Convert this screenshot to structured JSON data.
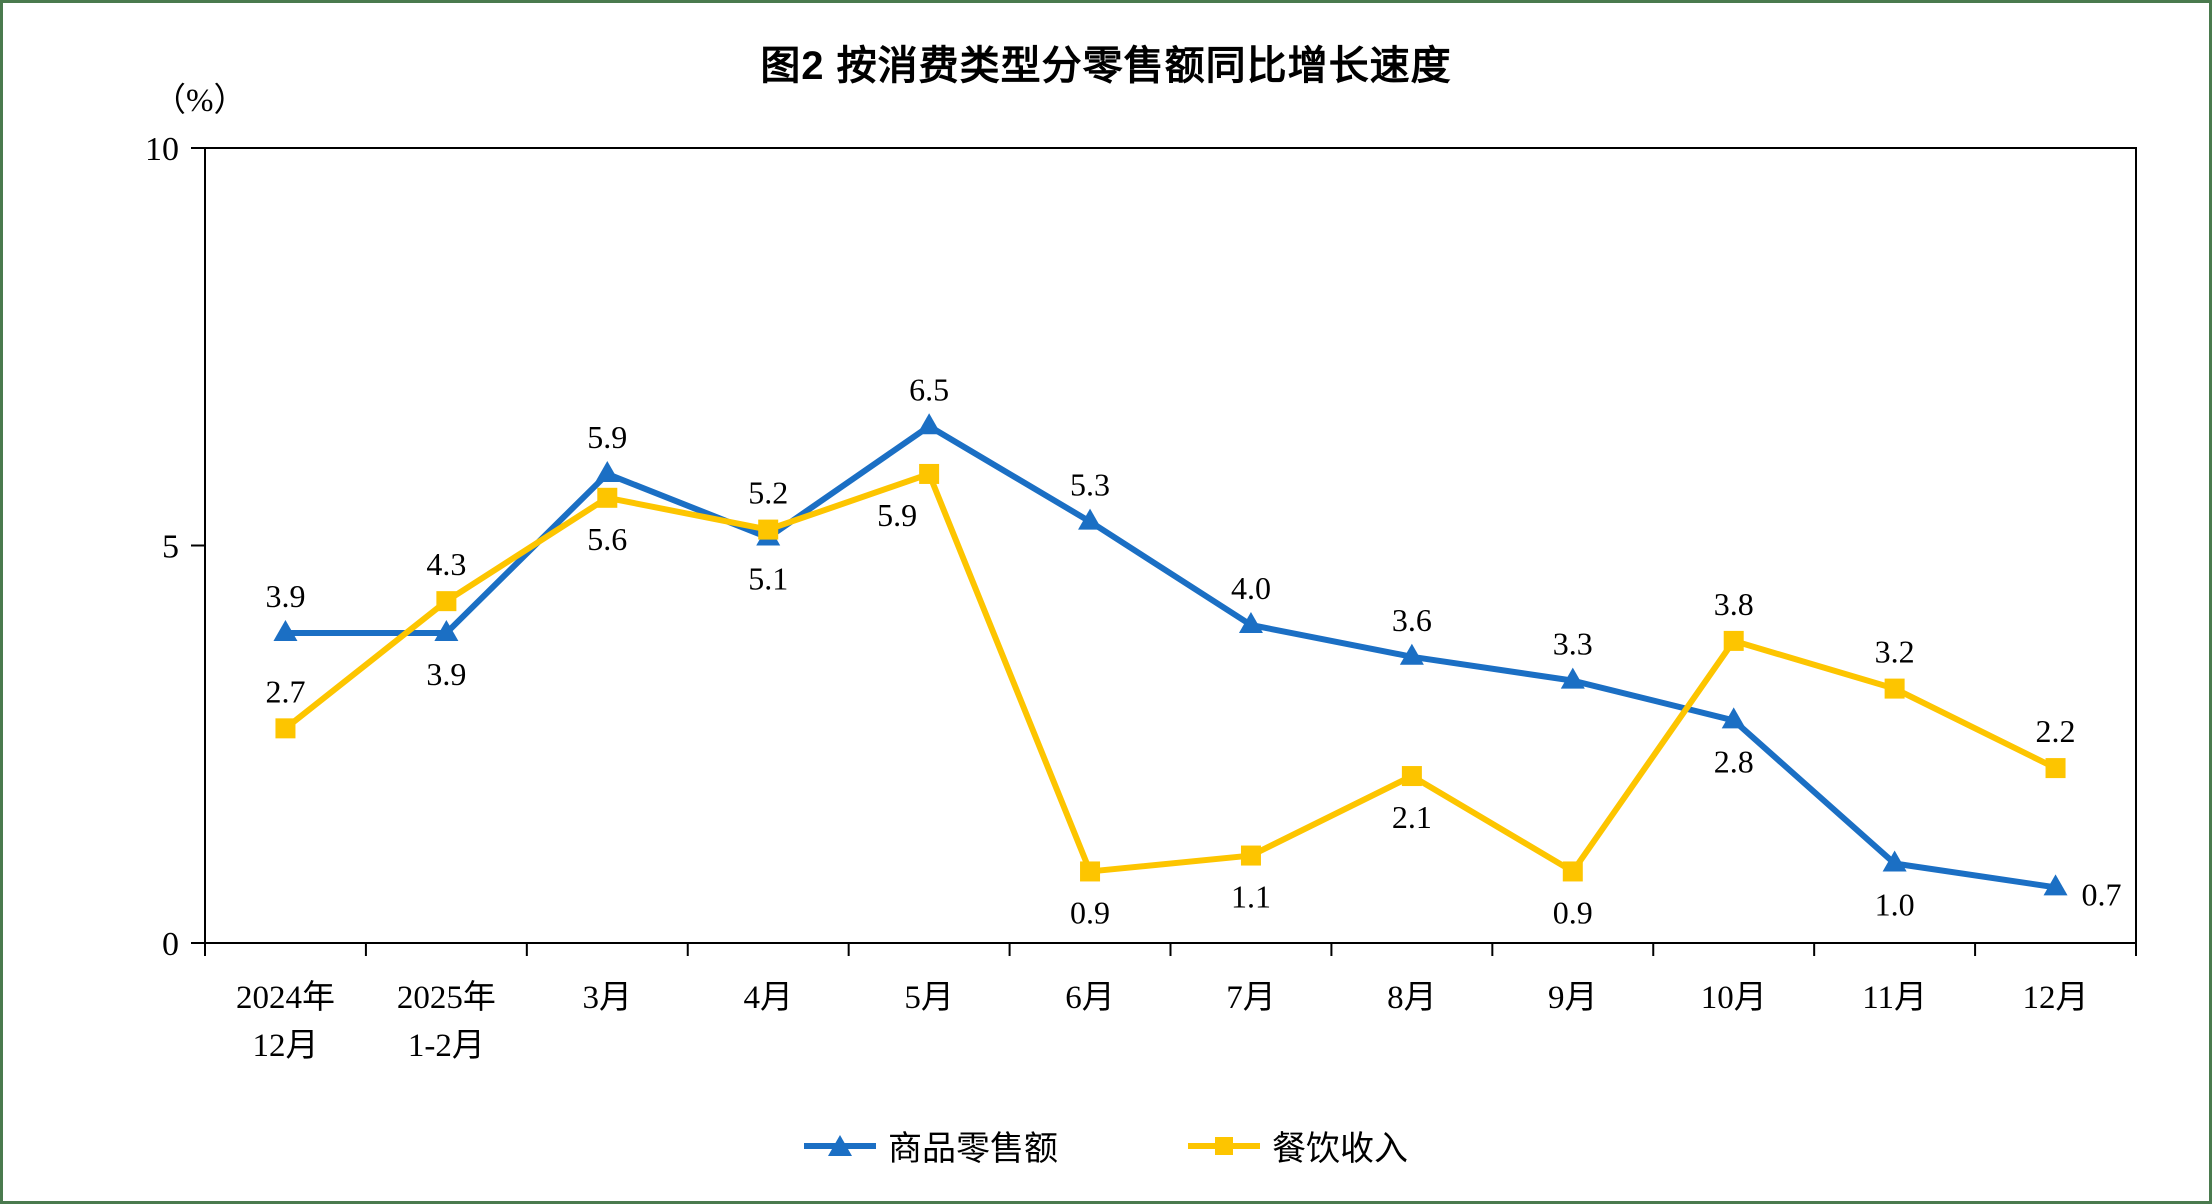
{
  "colors": {
    "frame_border": "#4a7a4e",
    "axis": "#000000",
    "series_blue": "#1b6fc4",
    "series_yellow": "#fdc500"
  },
  "chart_data": {
    "type": "line",
    "title": "图2  按消费类型分零售额同比增长速度",
    "unit_label": "（%）",
    "ylim": [
      0,
      10
    ],
    "yticks": [
      0,
      5,
      10
    ],
    "grid": "off",
    "legend_position": "bottom",
    "categories": [
      "2024年|12月",
      "2025年|1-2月",
      "3月",
      "4月",
      "5月",
      "6月",
      "7月",
      "8月",
      "9月",
      "10月",
      "11月",
      "12月"
    ],
    "series": [
      {
        "name": "商品零售额",
        "color": "#1b6fc4",
        "marker": "triangle",
        "values": [
          3.9,
          3.9,
          5.9,
          5.1,
          6.5,
          5.3,
          4.0,
          3.6,
          3.3,
          2.8,
          1.0,
          0.7
        ],
        "label_pos": [
          "above",
          "below",
          "above",
          "below",
          "above",
          "above",
          "above",
          "above",
          "above",
          "below",
          "below",
          "right"
        ]
      },
      {
        "name": "餐饮收入",
        "color": "#fdc500",
        "marker": "square",
        "values": [
          2.7,
          4.3,
          5.6,
          5.2,
          5.9,
          0.9,
          1.1,
          2.1,
          0.9,
          3.8,
          3.2,
          2.2
        ],
        "label_pos": [
          "above",
          "above",
          "below",
          "above",
          "below-left",
          "below",
          "below",
          "below",
          "below",
          "above",
          "above",
          "above"
        ]
      }
    ]
  }
}
